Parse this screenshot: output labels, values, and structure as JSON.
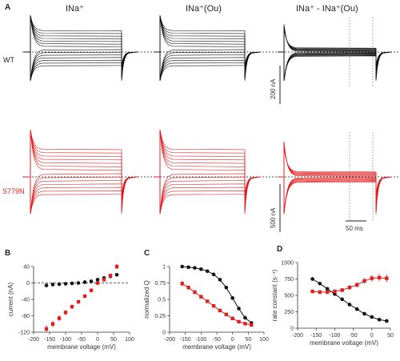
{
  "figure": {
    "panel_A_label": "A",
    "col1_header": "INa⁺",
    "col2_header": "INa⁺(Ou)",
    "col3_header": "INa⁺ - INa⁺(Ou)",
    "row1_label": "WT",
    "row2_label": "S779N",
    "scale_bar_1": "200 nA",
    "scale_bar_2": "500 nA",
    "scale_bar_time": "50 ms",
    "colors": {
      "wt": "#111111",
      "mutant": "#e02020"
    }
  },
  "chart_data": [
    {
      "panel": "B",
      "type": "scatter",
      "xlabel": "membrane voltage (mV)",
      "ylabel": "current (nA)",
      "xlim": [
        -200,
        100
      ],
      "ylim": [
        -120,
        40
      ],
      "xticks": [
        -200,
        -150,
        -100,
        -50,
        0,
        50,
        100
      ],
      "yticks": [
        40,
        0,
        -40,
        -80,
        -120
      ],
      "zero_line": true,
      "series": [
        {
          "color": "#111111",
          "x": [
            -160,
            -140,
            -120,
            -100,
            -80,
            -60,
            -40,
            -20,
            0,
            20,
            40,
            60
          ],
          "y": [
            -6,
            -4,
            -3,
            -2,
            -1,
            0,
            2,
            4,
            8,
            12,
            16,
            20
          ],
          "err": [
            3,
            2,
            2,
            2,
            2,
            2,
            2,
            2,
            2,
            3,
            3,
            4
          ]
        },
        {
          "color": "#e02020",
          "x": [
            -160,
            -140,
            -120,
            -100,
            -80,
            -60,
            -40,
            -20,
            0,
            20,
            40,
            60
          ],
          "y": [
            -112,
            -100,
            -86,
            -72,
            -58,
            -46,
            -32,
            -18,
            0,
            8,
            18,
            40
          ],
          "err": [
            9,
            8,
            7,
            6,
            5,
            4,
            3,
            3,
            3,
            3,
            4,
            6
          ]
        }
      ]
    },
    {
      "panel": "C",
      "type": "line",
      "xlabel": "membrane voltage (mV)",
      "ylabel": "normalized Q",
      "xlim": [
        -200,
        100
      ],
      "ylim": [
        0,
        1
      ],
      "xticks": [
        -200,
        -150,
        -100,
        -50,
        0,
        50,
        100
      ],
      "yticks": [
        1,
        0.75,
        0.5,
        0.25,
        0
      ],
      "series": [
        {
          "color": "#111111",
          "x": [
            -160,
            -140,
            -120,
            -100,
            -80,
            -60,
            -40,
            -20,
            0,
            20,
            40,
            60
          ],
          "y": [
            1.0,
            0.99,
            0.98,
            0.96,
            0.93,
            0.88,
            0.8,
            0.68,
            0.52,
            0.36,
            0.22,
            0.14
          ]
        },
        {
          "color": "#e02020",
          "x": [
            -160,
            -140,
            -120,
            -100,
            -80,
            -60,
            -40,
            -20,
            0,
            20,
            40,
            60
          ],
          "y": [
            0.74,
            0.68,
            0.61,
            0.54,
            0.47,
            0.4,
            0.33,
            0.27,
            0.21,
            0.16,
            0.13,
            0.11
          ],
          "err": [
            0.04,
            0.03,
            0.03,
            0.03,
            0.02,
            0.02,
            0.02,
            0.02,
            0.02,
            0.02,
            0.02,
            0.02
          ]
        }
      ]
    },
    {
      "panel": "D",
      "type": "line",
      "xlabel": "membrane voltage (mV)",
      "ylabel": "rate constant (s⁻¹)",
      "xlim": [
        -200,
        50
      ],
      "ylim": [
        0,
        1000
      ],
      "xticks": [
        -200,
        -150,
        -100,
        -50,
        0,
        50
      ],
      "yticks": [
        1000,
        750,
        500,
        250,
        0
      ],
      "series": [
        {
          "color": "#111111",
          "x": [
            -160,
            -140,
            -120,
            -100,
            -80,
            -60,
            -40,
            -20,
            0,
            20,
            40
          ],
          "y": [
            750,
            680,
            600,
            520,
            440,
            360,
            290,
            220,
            170,
            130,
            110
          ],
          "err": [
            30,
            25,
            20,
            20,
            15,
            15,
            15,
            10,
            10,
            10,
            10
          ]
        },
        {
          "color": "#e02020",
          "x": [
            -160,
            -140,
            -120,
            -100,
            -80,
            -60,
            -40,
            -20,
            0,
            20,
            40
          ],
          "y": [
            560,
            550,
            550,
            560,
            580,
            620,
            660,
            720,
            760,
            770,
            760
          ],
          "err": [
            30,
            30,
            30,
            30,
            30,
            35,
            40,
            45,
            50,
            55,
            60
          ]
        }
      ]
    }
  ]
}
